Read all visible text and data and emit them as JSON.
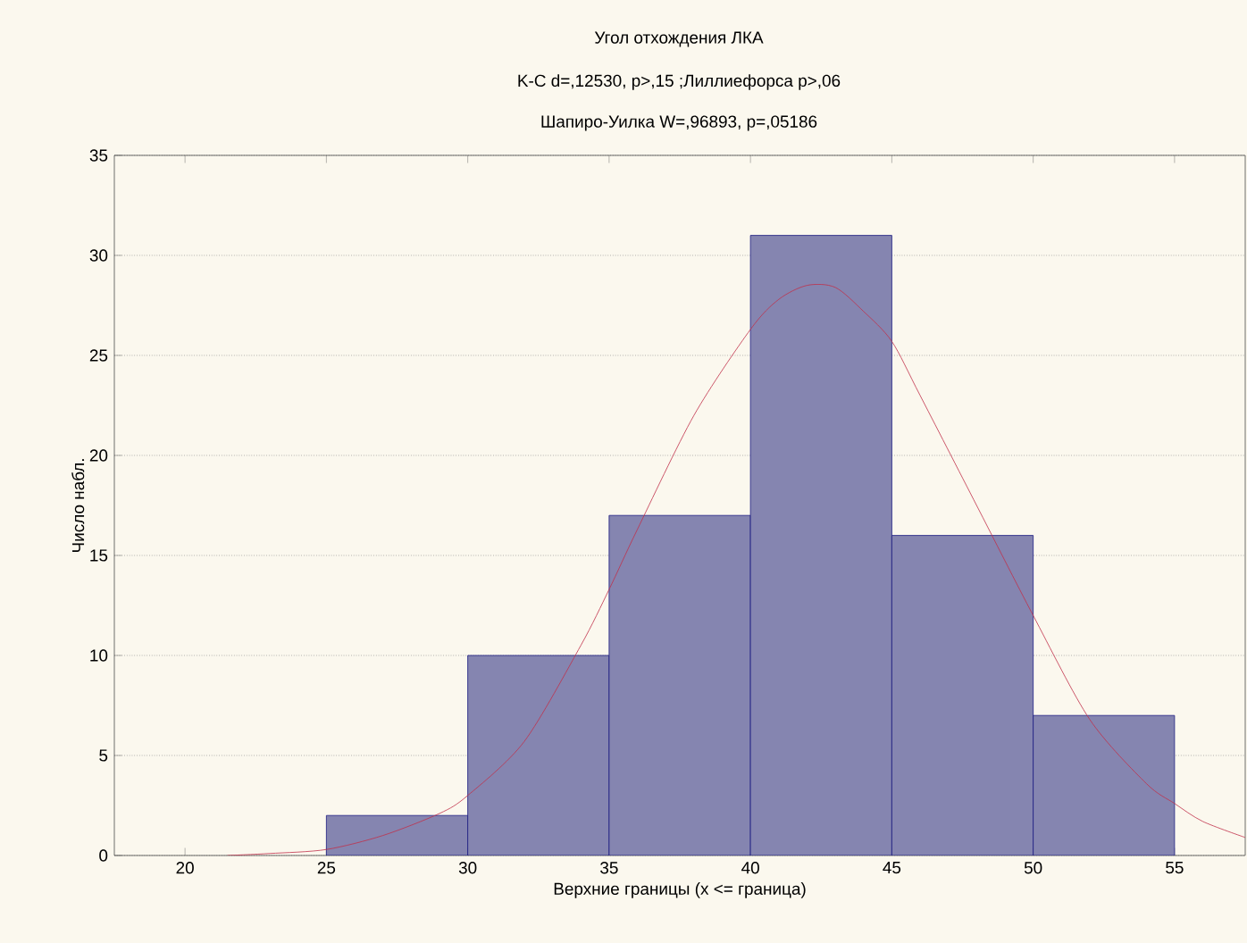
{
  "chart_data": {
    "type": "histogram",
    "title": "Угол отхождения ЛКА",
    "subtitle": "K-C d=,12530, p>,15 ;Лиллиефорса p>,06",
    "annotations": [
      "Шапиро-Уилка W=,96893, p=,05186"
    ],
    "xlabel": "Верхние границы (x <= граница)",
    "ylabel": "Число набл.",
    "bins": [
      25,
      30,
      35,
      40,
      45,
      50,
      55
    ],
    "values": [
      2,
      10,
      17,
      31,
      16,
      7
    ],
    "color": "#8585b0",
    "series": [
      {
        "type": "line",
        "color": "#c0304a",
        "x": [
          21.5,
          23,
          25,
          27,
          29,
          30,
          32,
          34,
          35,
          36,
          38,
          40,
          41,
          42,
          43,
          44,
          45,
          46,
          48,
          50,
          52,
          54,
          55,
          56,
          57.5
        ],
        "values": [
          0,
          0.1,
          0.3,
          1.0,
          2.1,
          3.0,
          5.7,
          10.5,
          13.3,
          16.3,
          22,
          26.3,
          27.8,
          28.5,
          28.4,
          27.2,
          25.7,
          23,
          17.5,
          12,
          6.8,
          3.6,
          2.6,
          1.7,
          0.9
        ]
      }
    ],
    "xlim": [
      17.5,
      57.5
    ],
    "ylim": [
      0,
      35
    ],
    "xticks": [
      20,
      25,
      30,
      35,
      40,
      45,
      50,
      55
    ],
    "yticks": [
      0,
      5,
      10,
      15,
      20,
      25,
      30,
      35
    ],
    "grid": "y"
  }
}
